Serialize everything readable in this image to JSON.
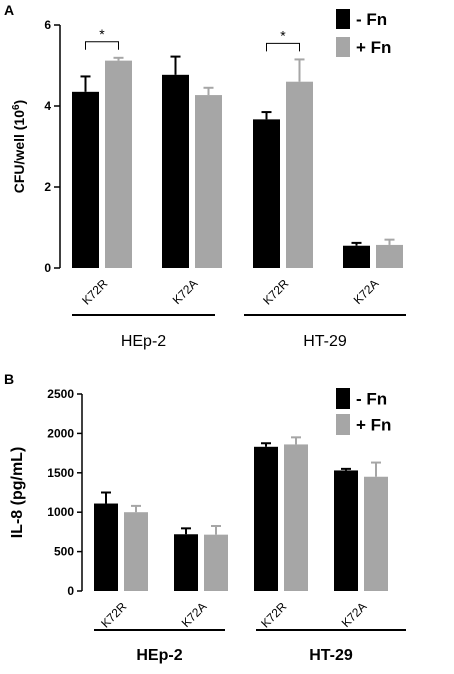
{
  "chart_data": [
    {
      "panel": "A",
      "type": "bar",
      "ylabel": "CFU/well (10",
      "ylabel_sup": "6",
      "ylabel_close": ")",
      "ylim": [
        0,
        6
      ],
      "yticks": [
        "0",
        "2",
        "4",
        "6"
      ],
      "categories": [
        "K72R",
        "K72A",
        "K72R",
        "K72A"
      ],
      "groups": [
        "HEp-2",
        "HT-29"
      ],
      "series": [
        {
          "name": "-  Fn",
          "color": "#000000",
          "values": [
            4.35,
            4.77,
            3.67,
            0.55
          ],
          "errors": [
            0.38,
            0.45,
            0.18,
            0.07
          ]
        },
        {
          "name": "+ Fn",
          "color": "#a6a6a6",
          "values": [
            5.12,
            4.27,
            4.6,
            0.57
          ],
          "errors": [
            0.07,
            0.18,
            0.55,
            0.13
          ]
        }
      ],
      "significance": [
        {
          "category_index": 0,
          "label": "*"
        },
        {
          "category_index": 2,
          "label": "*"
        }
      ]
    },
    {
      "panel": "B",
      "type": "bar",
      "ylabel": "IL-8 (pg/mL)",
      "ylim": [
        0,
        2500
      ],
      "yticks": [
        "0",
        "500",
        "1000",
        "1500",
        "2000",
        "2500"
      ],
      "categories": [
        "K72R",
        "K72A",
        "K72R",
        "K72A"
      ],
      "groups": [
        "HEp-2",
        "HT-29"
      ],
      "series": [
        {
          "name": "-  Fn",
          "color": "#000000",
          "values": [
            1110,
            720,
            1830,
            1530
          ],
          "errors": [
            140,
            75,
            45,
            20
          ]
        },
        {
          "name": "+ Fn",
          "color": "#a6a6a6",
          "values": [
            1000,
            715,
            1860,
            1450
          ],
          "errors": [
            80,
            110,
            90,
            180
          ]
        }
      ]
    }
  ]
}
